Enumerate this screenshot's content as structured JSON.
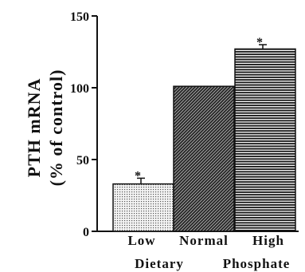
{
  "chart_data": {
    "type": "bar",
    "categories": [
      "Low",
      "Normal",
      "High"
    ],
    "values": [
      33,
      101,
      127
    ],
    "errors": [
      4,
      0,
      3
    ],
    "significance": [
      "*",
      "",
      "*"
    ],
    "ylabel_line1": "PTH mRNA",
    "ylabel_line2": "(% of control)",
    "xlabel_line2": [
      "Dietary",
      "Phosphate"
    ],
    "ylim": [
      0,
      150
    ],
    "yticks": [
      0,
      50,
      100,
      150
    ],
    "patterns": [
      "dots",
      "diagonal",
      "horizontal"
    ],
    "grid": false,
    "legend": "none"
  }
}
